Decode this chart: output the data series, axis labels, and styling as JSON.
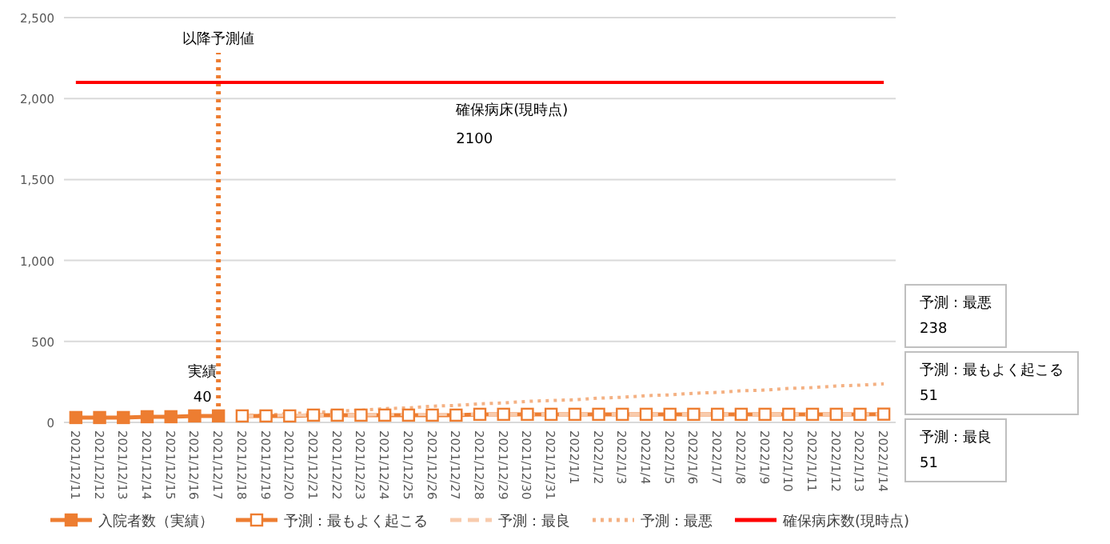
{
  "chart_data": {
    "type": "line",
    "categories": [
      "2021/12/11",
      "2021/12/12",
      "2021/12/13",
      "2021/12/14",
      "2021/12/15",
      "2021/12/16",
      "2021/12/17",
      "2021/12/18",
      "2021/12/19",
      "2021/12/20",
      "2021/12/21",
      "2021/12/22",
      "2021/12/23",
      "2021/12/24",
      "2021/12/25",
      "2021/12/26",
      "2021/12/27",
      "2021/12/28",
      "2021/12/29",
      "2021/12/30",
      "2021/12/31",
      "2022/1/1",
      "2022/1/2",
      "2022/1/3",
      "2022/1/4",
      "2022/1/5",
      "2022/1/6",
      "2022/1/7",
      "2022/1/8",
      "2022/1/9",
      "2022/1/10",
      "2022/1/11",
      "2022/1/12",
      "2022/1/13",
      "2022/1/14"
    ],
    "series": [
      {
        "name": "入院者数（実績）",
        "color": "#ed7d31",
        "marker": "square",
        "line_style": "solid",
        "values": [
          30,
          30,
          30,
          35,
          35,
          40,
          40,
          null,
          null,
          null,
          null,
          null,
          null,
          null,
          null,
          null,
          null,
          null,
          null,
          null,
          null,
          null,
          null,
          null,
          null,
          null,
          null,
          null,
          null,
          null,
          null,
          null,
          null,
          null,
          null
        ]
      },
      {
        "name": "予測：最もよく起こる",
        "color": "#ed7d31",
        "marker": "square",
        "line_style": "solid",
        "values": [
          null,
          null,
          null,
          null,
          null,
          null,
          null,
          40,
          40,
          40,
          45,
          45,
          45,
          45,
          45,
          45,
          45,
          50,
          50,
          50,
          50,
          50,
          50,
          50,
          50,
          50,
          50,
          50,
          50,
          50,
          50,
          50,
          50,
          50,
          51
        ]
      },
      {
        "name": "予測：最良",
        "color": "#f8cbad",
        "marker": "none",
        "line_style": "dashed",
        "values": [
          null,
          null,
          null,
          null,
          null,
          null,
          null,
          40,
          40,
          45,
          45,
          45,
          45,
          50,
          50,
          50,
          50,
          50,
          50,
          50,
          50,
          50,
          50,
          50,
          50,
          50,
          50,
          50,
          50,
          50,
          50,
          50,
          50,
          50,
          51
        ]
      },
      {
        "name": "予測：最悪",
        "color": "#f4b183",
        "marker": "none",
        "line_style": "dotted",
        "values": [
          null,
          null,
          null,
          null,
          null,
          null,
          null,
          40,
          45,
          55,
          60,
          70,
          75,
          85,
          90,
          100,
          105,
          115,
          120,
          130,
          135,
          140,
          150,
          155,
          165,
          170,
          180,
          185,
          195,
          200,
          210,
          215,
          225,
          230,
          238
        ]
      },
      {
        "name": "確保病床数(現時点)",
        "color": "#ff0000",
        "marker": "none",
        "line_style": "solid",
        "values": [
          2100,
          2100,
          2100,
          2100,
          2100,
          2100,
          2100,
          2100,
          2100,
          2100,
          2100,
          2100,
          2100,
          2100,
          2100,
          2100,
          2100,
          2100,
          2100,
          2100,
          2100,
          2100,
          2100,
          2100,
          2100,
          2100,
          2100,
          2100,
          2100,
          2100,
          2100,
          2100,
          2100,
          2100,
          2100
        ]
      }
    ],
    "ylim": [
      0,
      2500
    ],
    "yticks": [
      0,
      500,
      {
        "value": 1000,
        "label": "1,000"
      },
      {
        "value": 1500,
        "label": "1,500"
      },
      {
        "value": 2000,
        "label": "2,000"
      },
      {
        "value": 2500,
        "label": "2,500"
      }
    ],
    "grid": "y",
    "legend": "bottom",
    "ref_lines": [
      {
        "axis": "x",
        "value": "2021/12/17",
        "label": "以降予測値",
        "color": "#ed7d31",
        "line_style": "dotted"
      }
    ],
    "annotations": [
      {
        "text": "実績\n40",
        "x": "2021/12/17",
        "y": 40
      },
      {
        "text": "確保病床(現時点)\n2100",
        "x": "2021/12/27",
        "y": 2100
      },
      "予測：最悪\n238",
      "予測：最もよく起こる\n51",
      "予測：最良\n51"
    ]
  }
}
